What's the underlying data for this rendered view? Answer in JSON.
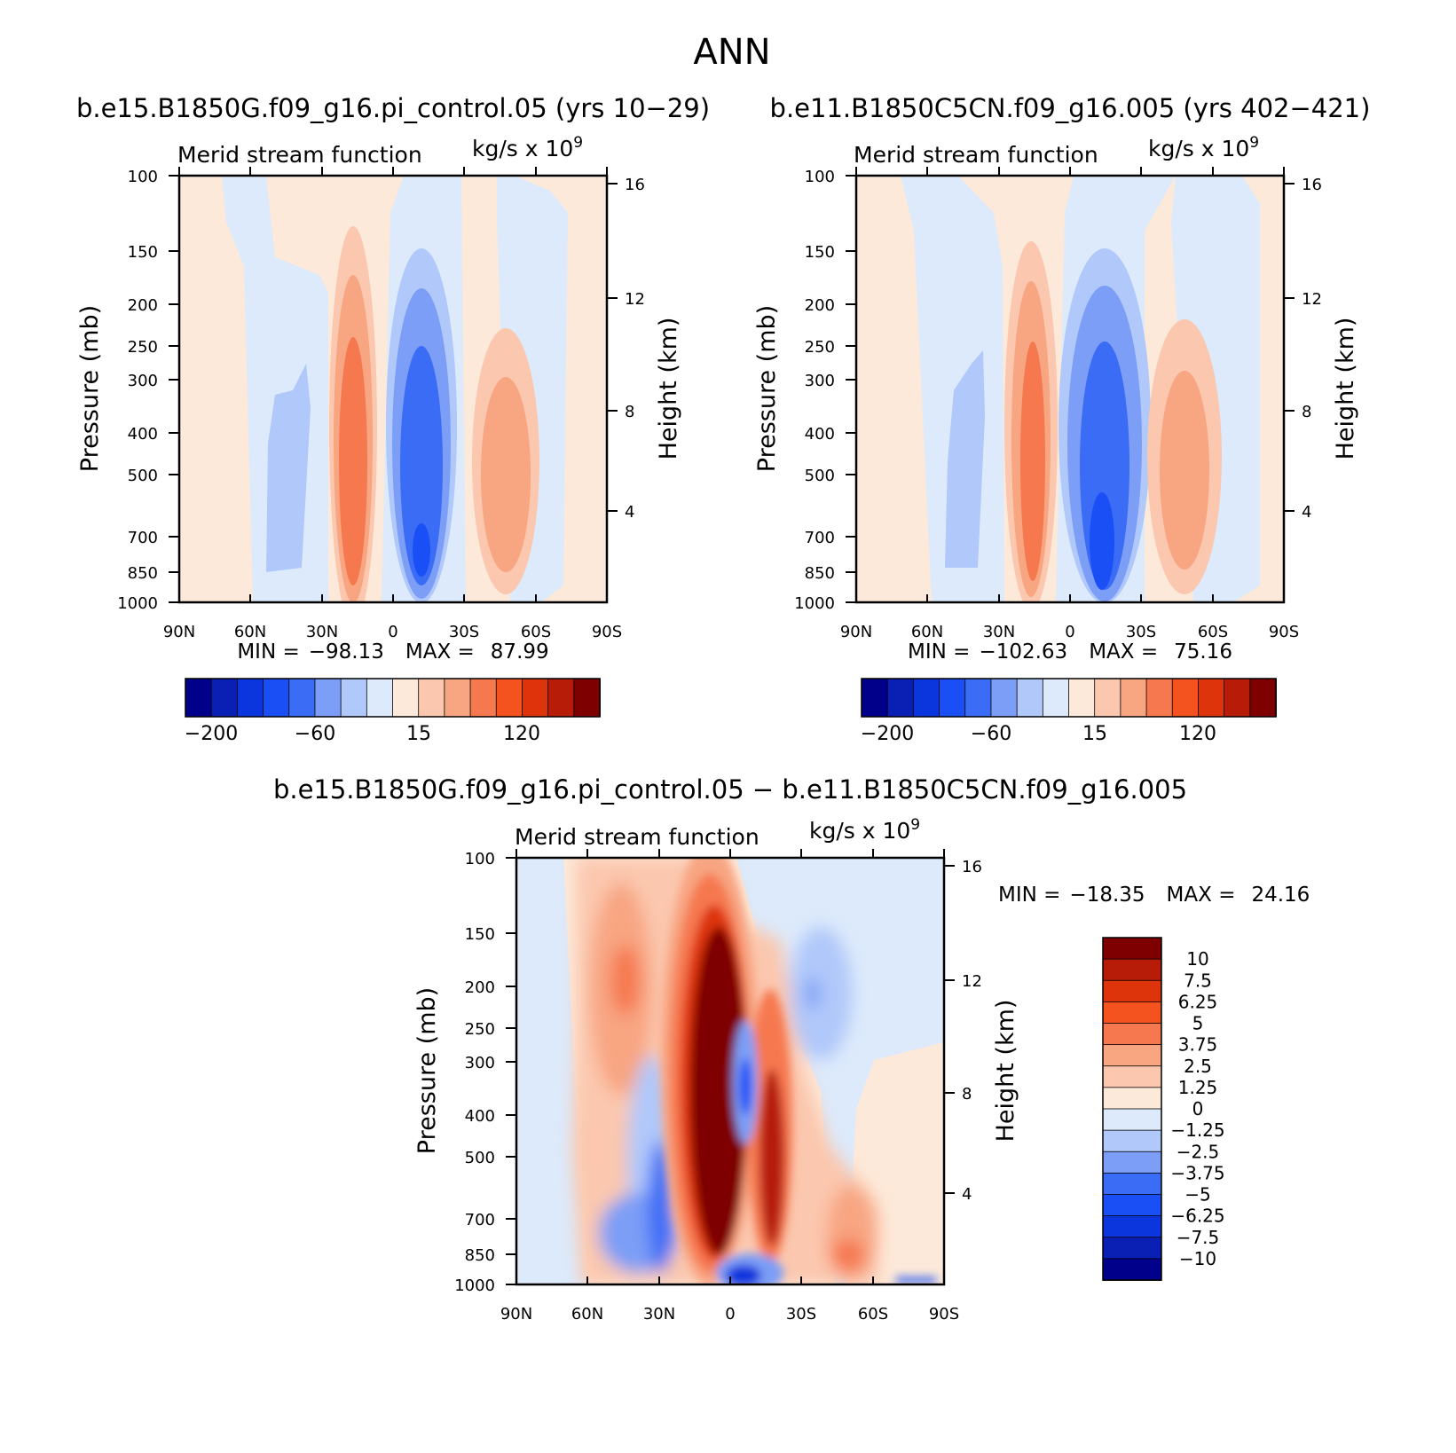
{
  "page": {
    "title": "ANN",
    "diff_title": "b.e15.B1850G.f09_g16.pi_control.05 − b.e11.B1850C5CN.f09_g16.005"
  },
  "panels": [
    {
      "id": "test",
      "case_label": "b.e15.B1850G.f09_g16.pi_control.05 (yrs 10−29)",
      "var_label": "Merid stream function",
      "units_label": "kg/s x 10",
      "units_exp": "9",
      "min_label": "MIN =",
      "min_value": "−98.13",
      "max_label": "MAX =",
      "max_value": "87.99"
    },
    {
      "id": "control",
      "case_label": "b.e11.B1850C5CN.f09_g16.005 (yrs 402−421)",
      "var_label": "Merid stream function",
      "units_label": "kg/s x 10",
      "units_exp": "9",
      "min_label": "MIN =",
      "min_value": "−102.63",
      "max_label": "MAX =",
      "max_value": "75.16"
    },
    {
      "id": "diff",
      "var_label": "Merid stream function",
      "units_label": "kg/s x 10",
      "units_exp": "9",
      "min_label": "MIN =",
      "min_value": "−18.35",
      "max_label": "MAX =",
      "max_value": "24.16"
    }
  ],
  "axes": {
    "x_ticks": [
      "90N",
      "60N",
      "30N",
      "0",
      "30S",
      "60S",
      "90S"
    ],
    "x_values": [
      90,
      60,
      30,
      0,
      -30,
      -60,
      -90
    ],
    "y_label": "Pressure (mb)",
    "y_ticks": [
      "100",
      "150",
      "200",
      "250",
      "300",
      "400",
      "500",
      "700",
      "850",
      "1000"
    ],
    "y_values": [
      100,
      150,
      200,
      250,
      300,
      400,
      500,
      700,
      850,
      1000
    ],
    "y_scale": "log",
    "y2_label": "Height (km)",
    "y2_ticks": [
      "16",
      "12",
      "8",
      "4"
    ],
    "y2_values": [
      16,
      12,
      8,
      4
    ]
  },
  "colorbars": {
    "main": {
      "tick_labels": [
        "−200",
        "−60",
        "15",
        "120"
      ],
      "colors": [
        "#00008b",
        "#0a1fb3",
        "#0b35dd",
        "#1a4ff5",
        "#3b6cf5",
        "#7c9ef6",
        "#b0c8fa",
        "#dceafb",
        "#fde9d9",
        "#fbc7ae",
        "#f8a582",
        "#f6784f",
        "#f4531f",
        "#dd340c",
        "#b61c07",
        "#7e0000"
      ]
    },
    "diff": {
      "tick_labels": [
        "10",
        "7.5",
        "6.25",
        "5",
        "3.75",
        "2.5",
        "1.25",
        "0",
        "−1.25",
        "−2.5",
        "−3.75",
        "−5",
        "−6.25",
        "−7.5",
        "−10"
      ],
      "colors": [
        "#7e0000",
        "#b61c07",
        "#dd340c",
        "#f4531f",
        "#f6784f",
        "#f8a582",
        "#fbc7ae",
        "#fde9d9",
        "#dceafb",
        "#b0c8fa",
        "#7c9ef6",
        "#3b6cf5",
        "#1a4ff5",
        "#0b35dd",
        "#0a1fb3",
        "#00008b"
      ]
    }
  },
  "chart_data": [
    {
      "type": "heatmap",
      "title": "b.e15.B1850G.f09_g16.pi_control.05 (yrs 10−29)",
      "xlabel": "",
      "ylabel": "Pressure (mb)",
      "xlim": [
        90,
        -90
      ],
      "ylim": [
        1000,
        100
      ],
      "min": -98.13,
      "max": 87.99,
      "features": [
        {
          "lat_from": 28,
          "lat_to": 6,
          "p_top": 240,
          "value": 80
        },
        {
          "lat_from": 0,
          "lat_to": -22,
          "p_top": 250,
          "value": -95
        },
        {
          "lat_from": -30,
          "lat_to": -50,
          "p_top": 240,
          "value": 48
        },
        {
          "lat_from": 70,
          "lat_to": 40,
          "p_top": 320,
          "value": -20
        }
      ]
    },
    {
      "type": "heatmap",
      "title": "b.e11.B1850C5CN.f09_g16.005 (yrs 402−421)",
      "xlabel": "",
      "ylabel": "Pressure (mb)",
      "xlim": [
        90,
        -90
      ],
      "ylim": [
        1000,
        100
      ],
      "min": -102.63,
      "max": 75.16,
      "features": [
        {
          "lat_from": 28,
          "lat_to": 6,
          "p_top": 240,
          "value": 72
        },
        {
          "lat_from": 0,
          "lat_to": -25,
          "p_top": 220,
          "value": -100
        },
        {
          "lat_from": -30,
          "lat_to": -52,
          "p_top": 240,
          "value": 46
        },
        {
          "lat_from": 70,
          "lat_to": 40,
          "p_top": 320,
          "value": -22
        }
      ]
    },
    {
      "type": "heatmap",
      "title": "b.e15.B1850G.f09_g16.pi_control.05 − b.e11.B1850C5CN.f09_g16.005",
      "xlabel": "",
      "ylabel": "Pressure (mb)",
      "xlim": [
        90,
        -90
      ],
      "ylim": [
        1000,
        100
      ],
      "min": -18.35,
      "max": 24.16,
      "features": [
        {
          "lat_from": 15,
          "lat_to": 0,
          "p_top": 210,
          "value": 24
        },
        {
          "lat_from": -3,
          "lat_to": -8,
          "p_top": 330,
          "value": -8
        },
        {
          "lat_from": -12,
          "lat_to": -20,
          "p_top": 250,
          "value": 8
        },
        {
          "lat_from": 30,
          "lat_to": 25,
          "p_top": 500,
          "value": -7
        },
        {
          "lat_from": 48,
          "lat_to": 38,
          "p_top": 160,
          "value": 4
        },
        {
          "lat_from": -28,
          "lat_to": -45,
          "p_top": 170,
          "value": -3
        }
      ]
    }
  ]
}
